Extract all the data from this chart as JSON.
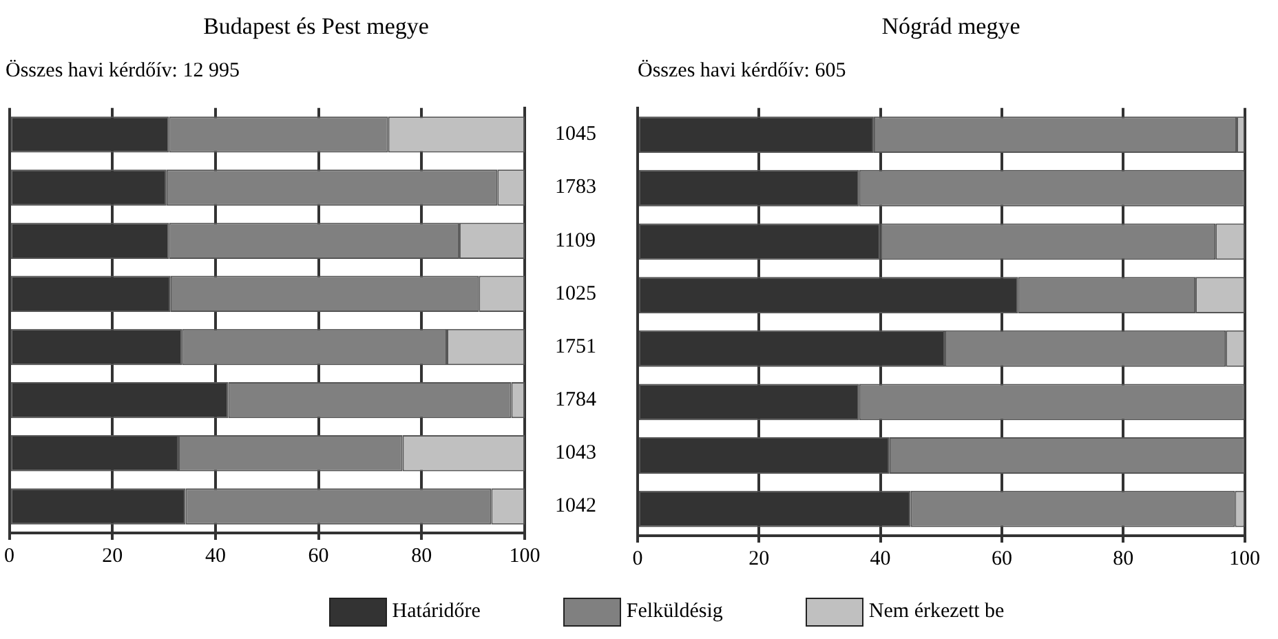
{
  "chart_data": [
    {
      "type": "bar",
      "orientation": "horizontal",
      "stacked": true,
      "title": "Budapest és Pest megye",
      "subtitle": "Összes havi kérdőív: 12 995",
      "categories": [
        "1045",
        "1783",
        "1109",
        "1025",
        "1751",
        "1784",
        "1043",
        "1042"
      ],
      "xlim": [
        0,
        100
      ],
      "xticks": [
        0,
        20,
        40,
        60,
        80,
        100
      ],
      "grid": "x",
      "legend": "bottom",
      "series": [
        {
          "name": "Határidőre",
          "color": "#333333",
          "values": [
            31,
            30.5,
            31,
            31.3,
            33.5,
            42.5,
            32.8,
            34.2
          ]
        },
        {
          "name": "Felküldésig",
          "color": "#808080",
          "values": [
            42.5,
            64.2,
            56.3,
            59.8,
            51.4,
            54.9,
            43.5,
            59.3
          ]
        },
        {
          "name": "Nem érkezett be",
          "color": "#c0c0c0",
          "values": [
            26.5,
            5.3,
            12.7,
            8.9,
            15.1,
            2.6,
            23.7,
            6.5
          ]
        }
      ]
    },
    {
      "type": "bar",
      "orientation": "horizontal",
      "stacked": true,
      "title": "Nógrád megye",
      "subtitle": "Összes havi kérdőív: 605",
      "categories": [
        "1045",
        "1783",
        "1109",
        "1025",
        "1751",
        "1784",
        "1043",
        "1042"
      ],
      "xlim": [
        0,
        100
      ],
      "xticks": [
        0,
        20,
        40,
        60,
        80,
        100
      ],
      "grid": "x",
      "tick_labels": "x",
      "series": [
        {
          "color": "#333333",
          "values": [
            38.9,
            36.5,
            40,
            62.7,
            50.6,
            36.5,
            41.5,
            45
          ]
        },
        {
          "color": "#808080",
          "values": [
            59.8,
            63.5,
            55.2,
            29.2,
            46.3,
            63.5,
            58.5,
            53.4
          ]
        },
        {
          "color": "#c0c0c0",
          "values": [
            1.3,
            0,
            4.8,
            8.1,
            3.1,
            0,
            0,
            1.6
          ]
        }
      ]
    }
  ]
}
